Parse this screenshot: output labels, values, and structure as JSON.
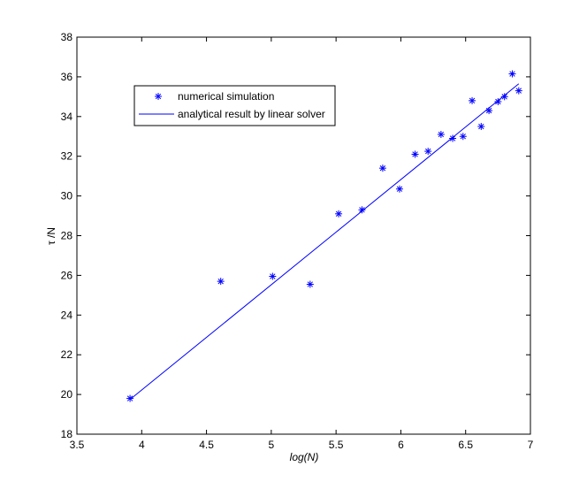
{
  "chart_data": {
    "type": "scatter",
    "title": "",
    "xlabel": "log(N)",
    "ylabel": "τ /N",
    "xlim": [
      3.5,
      7
    ],
    "ylim": [
      18,
      38
    ],
    "x_ticks": [
      "3.5",
      "4",
      "4.5",
      "5",
      "5.5",
      "6",
      "6.5",
      "7"
    ],
    "y_ticks": [
      "18",
      "20",
      "22",
      "24",
      "26",
      "28",
      "30",
      "32",
      "34",
      "36",
      "38"
    ],
    "grid": false,
    "legend_position": "top-left",
    "series": [
      {
        "name": "numerical simulation",
        "kind": "scatter",
        "marker": "asterisk",
        "color": "#0000ff",
        "points": [
          {
            "x": 3.91,
            "y": 19.8
          },
          {
            "x": 4.61,
            "y": 25.7
          },
          {
            "x": 5.01,
            "y": 25.95
          },
          {
            "x": 5.3,
            "y": 25.55
          },
          {
            "x": 5.52,
            "y": 29.1
          },
          {
            "x": 5.7,
            "y": 29.3
          },
          {
            "x": 5.86,
            "y": 31.4
          },
          {
            "x": 5.99,
            "y": 30.35
          },
          {
            "x": 6.11,
            "y": 32.1
          },
          {
            "x": 6.21,
            "y": 32.25
          },
          {
            "x": 6.31,
            "y": 33.1
          },
          {
            "x": 6.4,
            "y": 32.9
          },
          {
            "x": 6.48,
            "y": 33.0
          },
          {
            "x": 6.55,
            "y": 34.8
          },
          {
            "x": 6.62,
            "y": 33.5
          },
          {
            "x": 6.68,
            "y": 34.3
          },
          {
            "x": 6.75,
            "y": 34.75
          },
          {
            "x": 6.8,
            "y": 35.0
          },
          {
            "x": 6.86,
            "y": 36.15
          },
          {
            "x": 6.91,
            "y": 35.3
          }
        ]
      },
      {
        "name": "analytical result by linear solver",
        "kind": "line",
        "color": "#0000ff",
        "points": [
          {
            "x": 3.91,
            "y": 19.75
          },
          {
            "x": 6.91,
            "y": 35.65
          }
        ]
      }
    ]
  }
}
